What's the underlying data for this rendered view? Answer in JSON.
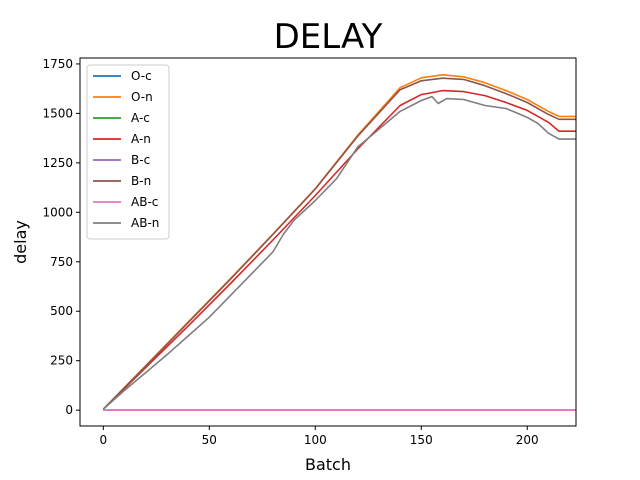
{
  "chart_data": {
    "type": "line",
    "title": "DELAY",
    "xlabel": "Batch",
    "ylabel": "delay",
    "xlim": [
      -11,
      223
    ],
    "ylim": [
      -80,
      1780
    ],
    "xticks": [
      0,
      50,
      100,
      150,
      200
    ],
    "yticks": [
      0,
      250,
      500,
      750,
      1000,
      1250,
      1500,
      1750
    ],
    "grid": false,
    "legend_position": "top-left",
    "series": [
      {
        "name": "O-c",
        "color": "#1f77b4",
        "points": [
          [
            0,
            0
          ],
          [
            223,
            0
          ]
        ]
      },
      {
        "name": "O-n",
        "color": "#ff7f0e",
        "points": [
          [
            0,
            5
          ],
          [
            20,
            225
          ],
          [
            40,
            445
          ],
          [
            60,
            665
          ],
          [
            80,
            890
          ],
          [
            100,
            1120
          ],
          [
            120,
            1390
          ],
          [
            140,
            1630
          ],
          [
            150,
            1680
          ],
          [
            160,
            1695
          ],
          [
            170,
            1685
          ],
          [
            180,
            1655
          ],
          [
            190,
            1615
          ],
          [
            200,
            1570
          ],
          [
            210,
            1510
          ],
          [
            215,
            1485
          ],
          [
            223,
            1485
          ]
        ]
      },
      {
        "name": "A-c",
        "color": "#2ca02c",
        "points": [
          [
            0,
            0
          ],
          [
            223,
            0
          ]
        ]
      },
      {
        "name": "A-n",
        "color": "#d62728",
        "points": [
          [
            0,
            5
          ],
          [
            20,
            215
          ],
          [
            40,
            425
          ],
          [
            60,
            640
          ],
          [
            80,
            860
          ],
          [
            100,
            1085
          ],
          [
            120,
            1320
          ],
          [
            140,
            1540
          ],
          [
            150,
            1595
          ],
          [
            160,
            1615
          ],
          [
            170,
            1610
          ],
          [
            180,
            1590
          ],
          [
            190,
            1555
          ],
          [
            200,
            1515
          ],
          [
            210,
            1455
          ],
          [
            215,
            1410
          ],
          [
            223,
            1410
          ]
        ]
      },
      {
        "name": "B-c",
        "color": "#9467bd",
        "points": [
          [
            0,
            0
          ],
          [
            223,
            0
          ]
        ]
      },
      {
        "name": "B-n",
        "color": "#8c564b",
        "points": [
          [
            0,
            5
          ],
          [
            20,
            222
          ],
          [
            40,
            442
          ],
          [
            60,
            662
          ],
          [
            80,
            888
          ],
          [
            100,
            1118
          ],
          [
            120,
            1385
          ],
          [
            140,
            1620
          ],
          [
            150,
            1665
          ],
          [
            160,
            1678
          ],
          [
            170,
            1672
          ],
          [
            180,
            1640
          ],
          [
            190,
            1600
          ],
          [
            200,
            1555
          ],
          [
            210,
            1495
          ],
          [
            215,
            1470
          ],
          [
            223,
            1470
          ]
        ]
      },
      {
        "name": "AB-c",
        "color": "#e377c2",
        "points": [
          [
            0,
            0
          ],
          [
            223,
            0
          ]
        ]
      },
      {
        "name": "AB-n",
        "color": "#7f7f7f",
        "points": [
          [
            0,
            5
          ],
          [
            10,
            100
          ],
          [
            20,
            190
          ],
          [
            30,
            280
          ],
          [
            40,
            375
          ],
          [
            50,
            470
          ],
          [
            60,
            580
          ],
          [
            70,
            690
          ],
          [
            80,
            800
          ],
          [
            85,
            890
          ],
          [
            90,
            960
          ],
          [
            100,
            1060
          ],
          [
            110,
            1170
          ],
          [
            115,
            1250
          ],
          [
            120,
            1330
          ],
          [
            130,
            1420
          ],
          [
            140,
            1510
          ],
          [
            150,
            1565
          ],
          [
            155,
            1585
          ],
          [
            158,
            1550
          ],
          [
            162,
            1575
          ],
          [
            170,
            1570
          ],
          [
            180,
            1540
          ],
          [
            190,
            1525
          ],
          [
            200,
            1480
          ],
          [
            205,
            1450
          ],
          [
            210,
            1400
          ],
          [
            215,
            1370
          ],
          [
            223,
            1370
          ]
        ]
      }
    ]
  }
}
